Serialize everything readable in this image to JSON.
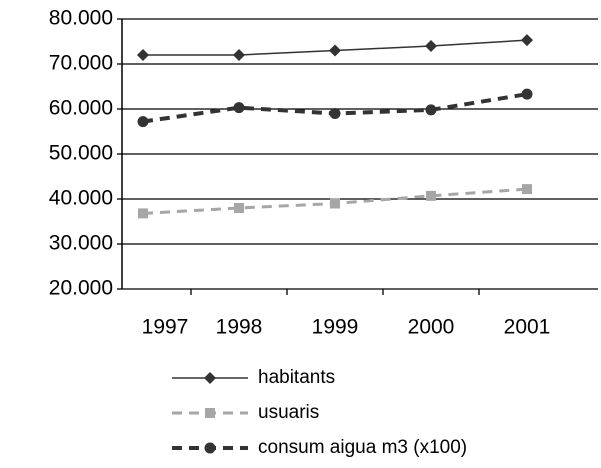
{
  "chart_data": {
    "type": "line",
    "categories": [
      "1997",
      "1998",
      "1999",
      "2000",
      "2001"
    ],
    "series": [
      {
        "name": "habitants",
        "color": "#333333",
        "marker": "diamond",
        "dash": "solid",
        "values": [
          72000,
          72000,
          73000,
          74000,
          75300
        ]
      },
      {
        "name": "usuaris",
        "color": "#a6a6a6",
        "marker": "square",
        "dash": "dashed",
        "values": [
          36800,
          38000,
          39000,
          40700,
          42200
        ]
      },
      {
        "name": "consum aigua m3 (x100)",
        "color": "#333333",
        "marker": "circle",
        "dash": "dashed",
        "values": [
          57200,
          60300,
          59000,
          59800,
          63300
        ]
      }
    ],
    "ylim": [
      20000,
      80000
    ],
    "yticks": [
      {
        "value": 20000,
        "label": "20.000"
      },
      {
        "value": 30000,
        "label": "30.000"
      },
      {
        "value": 40000,
        "label": "40.000"
      },
      {
        "value": 50000,
        "label": "50.000"
      },
      {
        "value": 60000,
        "label": "60.000"
      },
      {
        "value": 70000,
        "label": "70.000"
      },
      {
        "value": 80000,
        "label": "80.000"
      }
    ],
    "grid": true,
    "legend": "bottom"
  }
}
